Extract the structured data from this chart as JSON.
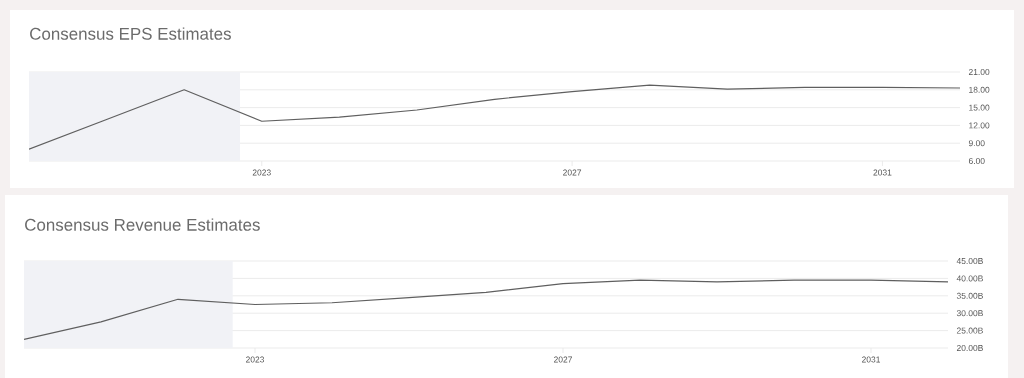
{
  "chart_data": [
    {
      "type": "line",
      "title": "Consensus EPS Estimates",
      "x": [
        2020,
        2021,
        2022,
        2023,
        2024,
        2025,
        2026,
        2027,
        2028,
        2029,
        2030,
        2031,
        2032
      ],
      "series": [
        {
          "color": "#5f5f5f",
          "values": [
            8.0,
            13.0,
            18.0,
            12.7,
            13.4,
            14.6,
            16.4,
            17.7,
            18.8,
            18.1,
            18.4,
            18.4,
            18.3
          ]
        }
      ],
      "xlim": [
        2020,
        2032
      ],
      "xticks": [
        2023,
        2027,
        2031
      ],
      "ylim": [
        6,
        21
      ],
      "yticks": [
        {
          "value": 6,
          "label": "6.00"
        },
        {
          "value": 9,
          "label": "9.00"
        },
        {
          "value": 12,
          "label": "12.00"
        },
        {
          "value": 15,
          "label": "15.00"
        },
        {
          "value": 18,
          "label": "18.00"
        },
        {
          "value": 21,
          "label": "21.00"
        }
      ],
      "bands": [
        {
          "axis": "x",
          "from": 2020,
          "to": 2022.72,
          "color": "#f1f2f6"
        }
      ],
      "grid": "y",
      "marker": "none",
      "line_style": "solid"
    },
    {
      "type": "line",
      "title": "Consensus Revenue Estimates",
      "x": [
        2020,
        2021,
        2022,
        2023,
        2024,
        2025,
        2026,
        2027,
        2028,
        2029,
        2030,
        2031,
        2032
      ],
      "series": [
        {
          "color": "#5f5f5f",
          "values": [
            22.5,
            27.5,
            34,
            32.5,
            33,
            34.5,
            36,
            38.5,
            39.5,
            39,
            39.5,
            39.5,
            39
          ]
        }
      ],
      "xlim": [
        2020,
        2032
      ],
      "xticks": [
        2023,
        2027,
        2031
      ],
      "ylim": [
        20,
        45
      ],
      "yticks": [
        {
          "value": 20,
          "label": "20.00B"
        },
        {
          "value": 25,
          "label": "25.00B"
        },
        {
          "value": 30,
          "label": "30.00B"
        },
        {
          "value": 35,
          "label": "35.00B"
        },
        {
          "value": 40,
          "label": "40.00B"
        },
        {
          "value": 45,
          "label": "45.00B"
        }
      ],
      "bands": [
        {
          "axis": "x",
          "from": 2020,
          "to": 2022.71,
          "color": "#f1f2f6"
        }
      ],
      "grid": "y",
      "marker": "none",
      "line_style": "solid"
    }
  ]
}
